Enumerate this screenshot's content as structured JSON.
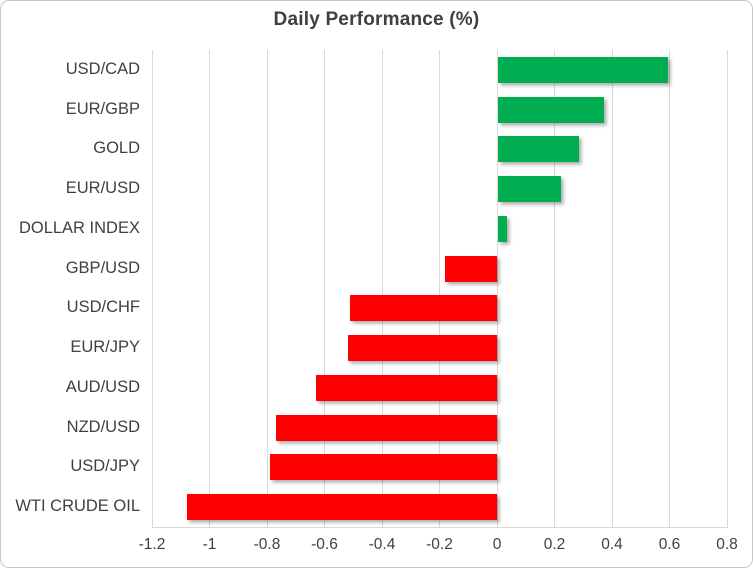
{
  "title": "Daily Performance (%)",
  "chart_data": {
    "type": "bar",
    "orientation": "horizontal",
    "title": "Daily Performance (%)",
    "categories": [
      "USD/CAD",
      "EUR/GBP",
      "GOLD",
      "EUR/USD",
      "DOLLAR INDEX",
      "GBP/USD",
      "USD/CHF",
      "EUR/JPY",
      "AUD/USD",
      "NZD/USD",
      "USD/JPY",
      "WTI CRUDE OIL"
    ],
    "values": [
      0.59,
      0.37,
      0.28,
      0.22,
      0.03,
      -0.18,
      -0.51,
      -0.52,
      -0.63,
      -0.77,
      -0.79,
      -1.08
    ],
    "xlabel": "",
    "ylabel": "",
    "xlim": [
      -1.2,
      0.8
    ],
    "xticks": [
      -1.2,
      -1,
      -0.8,
      -0.6,
      -0.4,
      -0.2,
      0,
      0.2,
      0.4,
      0.6,
      0.8
    ],
    "xtick_labels": [
      "-1.2",
      "-1",
      "-0.8",
      "-0.6",
      "-0.4",
      "-0.2",
      "0",
      "0.2",
      "0.4",
      "0.6",
      "0.8"
    ],
    "grid": true,
    "legend": false,
    "bar_order": "values sorted descending top to bottom"
  },
  "colors": {
    "positive_bar": "#00AD50",
    "negative_bar": "#FF0000",
    "text": "#404040",
    "title_text": "#3F3F3F",
    "gridline": "#D9D9D9",
    "frame_border": "#C9C7C5",
    "background": "#FFFFFF"
  }
}
